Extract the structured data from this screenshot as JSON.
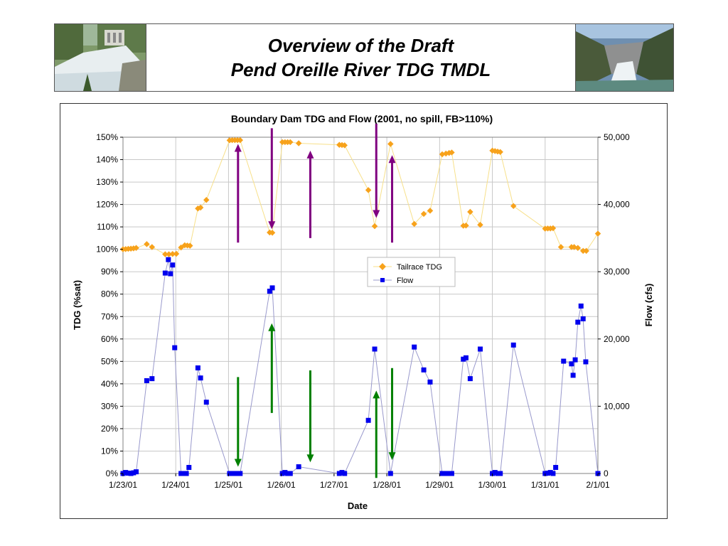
{
  "slide": {
    "title_line1": "Overview of the Draft",
    "title_line2": "Pend Oreille River TDG TMDL",
    "left_photo": "dam-spillway-photo",
    "right_photo": "dam-canyon-spill-photo"
  },
  "chart_data": {
    "type": "scatter",
    "title": "Boundary Dam TDG and Flow (2001, no spill, FB>110%)",
    "xlabel": "Date",
    "ylabel": "TDG (%sat)",
    "y2label": "Flow (cfs)",
    "x_ticks": [
      "1/23/01",
      "1/24/01",
      "1/25/01",
      "1/26/01",
      "1/27/01",
      "1/28/01",
      "1/29/01",
      "1/30/01",
      "1/31/01",
      "2/1/01"
    ],
    "xlim": [
      0,
      9
    ],
    "ylim": [
      0,
      150
    ],
    "y2lim": [
      0,
      50000
    ],
    "y_ticks": [
      "0%",
      "10%",
      "20%",
      "30%",
      "40%",
      "50%",
      "60%",
      "70%",
      "80%",
      "90%",
      "100%",
      "110%",
      "120%",
      "130%",
      "140%",
      "150%"
    ],
    "y2_ticks": [
      "0",
      "10,000",
      "20,000",
      "30,000",
      "40,000",
      "50,000"
    ],
    "grid": true,
    "legend_position": "center-right",
    "series": [
      {
        "name": "Tailrace TDG",
        "axis": "left",
        "marker": "diamond",
        "color": "#F7A21B",
        "line_color": "#F7E08A",
        "points": [
          [
            0.0,
            100.0
          ],
          [
            0.05,
            100.1
          ],
          [
            0.1,
            100.2
          ],
          [
            0.15,
            100.3
          ],
          [
            0.2,
            100.4
          ],
          [
            0.25,
            100.6
          ],
          [
            0.45,
            102.3
          ],
          [
            0.55,
            101.0
          ],
          [
            0.8,
            97.8
          ],
          [
            0.87,
            97.8
          ],
          [
            0.94,
            97.9
          ],
          [
            1.01,
            98.0
          ],
          [
            1.1,
            100.8
          ],
          [
            1.17,
            101.8
          ],
          [
            1.22,
            101.7
          ],
          [
            1.27,
            101.6
          ],
          [
            1.42,
            118.2
          ],
          [
            1.47,
            118.6
          ],
          [
            1.58,
            122.0
          ],
          [
            2.02,
            148.6
          ],
          [
            2.07,
            148.7
          ],
          [
            2.12,
            148.7
          ],
          [
            2.17,
            148.7
          ],
          [
            2.22,
            148.7
          ],
          [
            2.78,
            107.5
          ],
          [
            2.83,
            107.4
          ],
          [
            3.02,
            147.8
          ],
          [
            3.07,
            147.8
          ],
          [
            3.12,
            147.8
          ],
          [
            3.17,
            147.8
          ],
          [
            3.33,
            147.3
          ],
          [
            4.1,
            146.6
          ],
          [
            4.15,
            146.5
          ],
          [
            4.2,
            146.4
          ],
          [
            4.65,
            126.4
          ],
          [
            4.77,
            110.3
          ],
          [
            5.07,
            147.0
          ],
          [
            5.52,
            111.3
          ],
          [
            5.7,
            115.8
          ],
          [
            5.82,
            117.2
          ],
          [
            6.05,
            142.4
          ],
          [
            6.12,
            142.7
          ],
          [
            6.18,
            143.0
          ],
          [
            6.23,
            143.2
          ],
          [
            6.45,
            110.5
          ],
          [
            6.5,
            110.6
          ],
          [
            6.58,
            116.7
          ],
          [
            6.77,
            110.9
          ],
          [
            7.0,
            144.0
          ],
          [
            7.05,
            143.8
          ],
          [
            7.1,
            143.6
          ],
          [
            7.15,
            143.4
          ],
          [
            7.4,
            119.3
          ],
          [
            8.0,
            109.2
          ],
          [
            8.05,
            109.3
          ],
          [
            8.1,
            109.3
          ],
          [
            8.15,
            109.4
          ],
          [
            8.3,
            101.0
          ],
          [
            8.5,
            101.0
          ],
          [
            8.55,
            101.0
          ],
          [
            8.62,
            100.6
          ],
          [
            8.72,
            99.3
          ],
          [
            8.78,
            99.3
          ],
          [
            9.0,
            107.0
          ]
        ]
      },
      {
        "name": "Flow",
        "axis": "right",
        "marker": "square",
        "color": "#0000EE",
        "line_color": "#9999CC",
        "points": [
          [
            0.0,
            0
          ],
          [
            0.05,
            150
          ],
          [
            0.1,
            50
          ],
          [
            0.15,
            0
          ],
          [
            0.2,
            100
          ],
          [
            0.25,
            250
          ],
          [
            0.45,
            13800
          ],
          [
            0.55,
            14100
          ],
          [
            0.8,
            29800
          ],
          [
            0.86,
            31800
          ],
          [
            0.9,
            29700
          ],
          [
            0.94,
            31000
          ],
          [
            0.98,
            18700
          ],
          [
            1.1,
            0
          ],
          [
            1.15,
            0
          ],
          [
            1.2,
            0
          ],
          [
            1.25,
            900
          ],
          [
            1.42,
            15700
          ],
          [
            1.47,
            14200
          ],
          [
            1.58,
            10600
          ],
          [
            2.02,
            0
          ],
          [
            2.07,
            0
          ],
          [
            2.12,
            0
          ],
          [
            2.17,
            0
          ],
          [
            2.22,
            0
          ],
          [
            2.78,
            27100
          ],
          [
            2.83,
            27600
          ],
          [
            3.02,
            0
          ],
          [
            3.07,
            150
          ],
          [
            3.12,
            0
          ],
          [
            3.17,
            0
          ],
          [
            3.33,
            1000
          ],
          [
            4.1,
            0
          ],
          [
            4.15,
            150
          ],
          [
            4.2,
            0
          ],
          [
            4.65,
            7900
          ],
          [
            4.77,
            18500
          ],
          [
            5.07,
            0
          ],
          [
            5.52,
            18800
          ],
          [
            5.7,
            15400
          ],
          [
            5.82,
            13600
          ],
          [
            6.05,
            0
          ],
          [
            6.12,
            0
          ],
          [
            6.18,
            0
          ],
          [
            6.23,
            0
          ],
          [
            6.45,
            17000
          ],
          [
            6.5,
            17200
          ],
          [
            6.58,
            14100
          ],
          [
            6.77,
            18500
          ],
          [
            7.0,
            0
          ],
          [
            7.05,
            150
          ],
          [
            7.1,
            0
          ],
          [
            7.15,
            0
          ],
          [
            7.4,
            19100
          ],
          [
            8.0,
            0
          ],
          [
            8.05,
            50
          ],
          [
            8.1,
            150
          ],
          [
            8.15,
            0
          ],
          [
            8.2,
            900
          ],
          [
            8.35,
            16700
          ],
          [
            8.5,
            16300
          ],
          [
            8.53,
            14600
          ],
          [
            8.57,
            16900
          ],
          [
            8.62,
            22500
          ],
          [
            8.68,
            24900
          ],
          [
            8.72,
            23000
          ],
          [
            8.77,
            16600
          ],
          [
            9.0,
            0
          ]
        ]
      }
    ],
    "annotations": [
      {
        "type": "arrow",
        "color": "purple",
        "direction": "up",
        "x": 2.18,
        "y_from": 103,
        "y_to": 147
      },
      {
        "type": "arrow",
        "color": "purple",
        "direction": "down",
        "x": 2.82,
        "y_from": 154,
        "y_to": 109
      },
      {
        "type": "arrow",
        "color": "purple",
        "direction": "up",
        "x": 3.55,
        "y_from": 105,
        "y_to": 144
      },
      {
        "type": "arrow",
        "color": "purple",
        "direction": "down",
        "x": 4.8,
        "y_from": 156,
        "y_to": 114
      },
      {
        "type": "arrow",
        "color": "purple",
        "direction": "up",
        "x": 5.1,
        "y_from": 103,
        "y_to": 142
      },
      {
        "type": "arrow",
        "color": "green",
        "direction": "down",
        "x": 2.18,
        "y_from": 43,
        "y_to": 3
      },
      {
        "type": "arrow",
        "color": "green",
        "direction": "up",
        "x": 2.82,
        "y_from": 27,
        "y_to": 67
      },
      {
        "type": "arrow",
        "color": "green",
        "direction": "down",
        "x": 3.55,
        "y_from": 46,
        "y_to": 5
      },
      {
        "type": "arrow",
        "color": "green",
        "direction": "up",
        "x": 4.8,
        "y_from": -2,
        "y_to": 37
      },
      {
        "type": "arrow",
        "color": "green",
        "direction": "down",
        "x": 5.1,
        "y_from": 47,
        "y_to": 6
      }
    ]
  }
}
